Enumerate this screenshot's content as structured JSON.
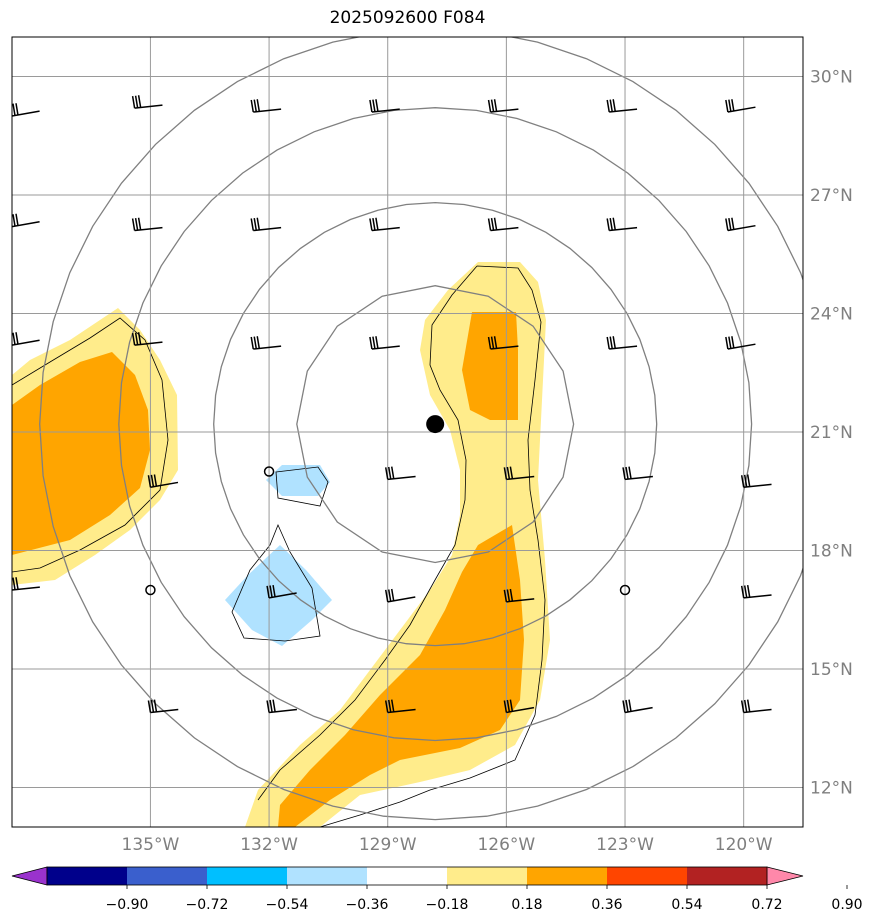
{
  "title": "2025092600 F084",
  "chart_data": {
    "type": "map-contour",
    "title": "2025092600 F084",
    "projection": "lat-lon",
    "lon_range": [
      -138.5,
      -118.5
    ],
    "lat_range": [
      11.0,
      31.0
    ],
    "lat_ticks": [
      {
        "value": 12,
        "label": "12°N"
      },
      {
        "value": 15,
        "label": "15°N"
      },
      {
        "value": 18,
        "label": "18°N"
      },
      {
        "value": 21,
        "label": "21°N"
      },
      {
        "value": 24,
        "label": "24°N"
      },
      {
        "value": 27,
        "label": "27°N"
      },
      {
        "value": 30,
        "label": "30°N"
      }
    ],
    "lon_ticks": [
      {
        "value": -135,
        "label": "135°W"
      },
      {
        "value": -132,
        "label": "132°W"
      },
      {
        "value": -129,
        "label": "129°W"
      },
      {
        "value": -126,
        "label": "126°W"
      },
      {
        "value": -123,
        "label": "123°W"
      },
      {
        "value": -120,
        "label": "120°W"
      }
    ],
    "grid": true,
    "center_marker": {
      "lon": -127.8,
      "lat": 21.2
    },
    "range_rings_deg": [
      3.5,
      5.6,
      8.0,
      10.0
    ],
    "colorbar": {
      "orientation": "horizontal",
      "extend": "both",
      "ticks": [
        "−0.90",
        "−0.72",
        "−0.54",
        "−0.36",
        "−0.18",
        "0.18",
        "0.36",
        "0.54",
        "0.72",
        "0.90"
      ],
      "colors": [
        "#9a32cd",
        "#00008b",
        "#3a5fcd",
        "#00bfff",
        "#b0e2ff",
        "#ffffff",
        "#ffec8b",
        "#ffa500",
        "#ff4500",
        "#b22222",
        "#ff88aa"
      ]
    },
    "fill_colors": {
      "pos_low": "#ffec8b",
      "pos_mid": "#ffa500",
      "neg_low": "#b0e2ff"
    },
    "wind_barbs": [
      {
        "lon": -138.5,
        "lat": 29.0
      },
      {
        "lon": -135.4,
        "lat": 29.2
      },
      {
        "lon": -132.4,
        "lat": 29.1
      },
      {
        "lon": -129.4,
        "lat": 29.1
      },
      {
        "lon": -126.4,
        "lat": 29.1
      },
      {
        "lon": -123.4,
        "lat": 29.1
      },
      {
        "lon": -120.4,
        "lat": 29.1
      },
      {
        "lon": -138.5,
        "lat": 26.2
      },
      {
        "lon": -135.4,
        "lat": 26.1
      },
      {
        "lon": -132.4,
        "lat": 26.1
      },
      {
        "lon": -129.4,
        "lat": 26.1
      },
      {
        "lon": -126.4,
        "lat": 26.1
      },
      {
        "lon": -123.4,
        "lat": 26.1
      },
      {
        "lon": -120.4,
        "lat": 26.1
      },
      {
        "lon": -138.5,
        "lat": 23.2
      },
      {
        "lon": -135.4,
        "lat": 23.2
      },
      {
        "lon": -132.4,
        "lat": 23.1
      },
      {
        "lon": -129.4,
        "lat": 23.1
      },
      {
        "lon": -126.4,
        "lat": 23.1
      },
      {
        "lon": -123.4,
        "lat": 23.1
      },
      {
        "lon": -120.4,
        "lat": 23.1
      },
      {
        "lon": -135.0,
        "lat": 19.6
      },
      {
        "lon": -129.0,
        "lat": 19.8
      },
      {
        "lon": -126.0,
        "lat": 19.8
      },
      {
        "lon": -123.0,
        "lat": 19.8
      },
      {
        "lon": -120.0,
        "lat": 19.6
      },
      {
        "lon": -138.5,
        "lat": 17.0
      },
      {
        "lon": -132.0,
        "lat": 16.8
      },
      {
        "lon": -129.0,
        "lat": 16.7
      },
      {
        "lon": -126.0,
        "lat": 16.7
      },
      {
        "lon": -120.0,
        "lat": 16.8
      },
      {
        "lon": -135.0,
        "lat": 13.9
      },
      {
        "lon": -132.0,
        "lat": 13.9
      },
      {
        "lon": -129.0,
        "lat": 13.9
      },
      {
        "lon": -126.0,
        "lat": 13.9
      },
      {
        "lon": -123.0,
        "lat": 13.9
      },
      {
        "lon": -120.0,
        "lat": 13.9
      }
    ],
    "calm_circles": [
      {
        "lon": -132.0,
        "lat": 20.0
      },
      {
        "lon": -135.0,
        "lat": 17.0
      },
      {
        "lon": -123.0,
        "lat": 17.0
      }
    ]
  }
}
